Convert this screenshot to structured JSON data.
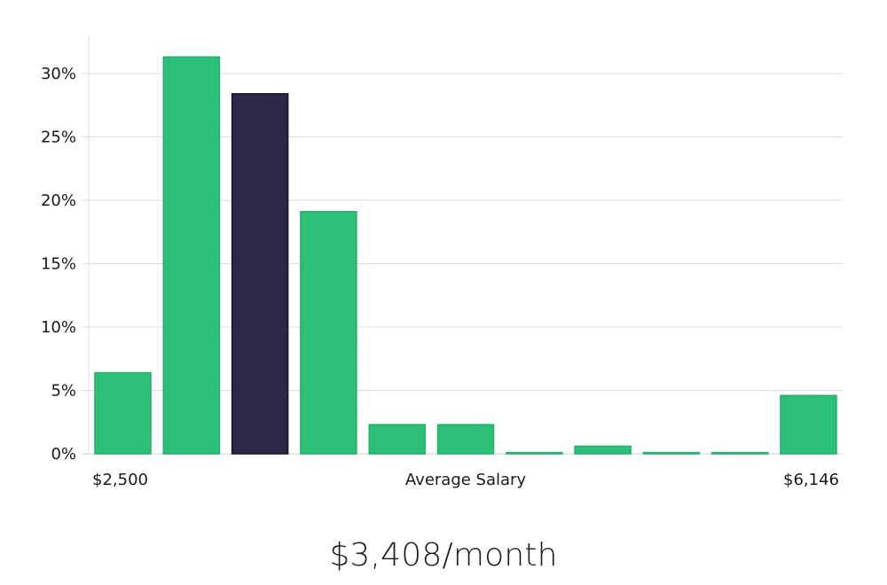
{
  "chart_data": {
    "type": "bar",
    "xlabel": "Average Salary",
    "x_min_label": "$2,500",
    "x_max_label": "$6,146",
    "ylabel": "",
    "ylim": [
      0,
      33
    ],
    "yticks": [
      0,
      5,
      10,
      15,
      20,
      25,
      30
    ],
    "ytick_labels": [
      "0%",
      "5%",
      "10%",
      "15%",
      "20%",
      "25%",
      "30%"
    ],
    "values": [
      6.4,
      31.3,
      28.4,
      19.1,
      2.3,
      2.3,
      0.1,
      0.6,
      0.1,
      0.1,
      4.6
    ],
    "highlight_index": 2,
    "grid": true,
    "colors": {
      "bar": "#2bbf78",
      "bar_highlight": "#2a2748",
      "grid": "#dcdcdc",
      "axis": "#cccccc"
    }
  },
  "footer": {
    "value_text": "$3,408/month"
  }
}
